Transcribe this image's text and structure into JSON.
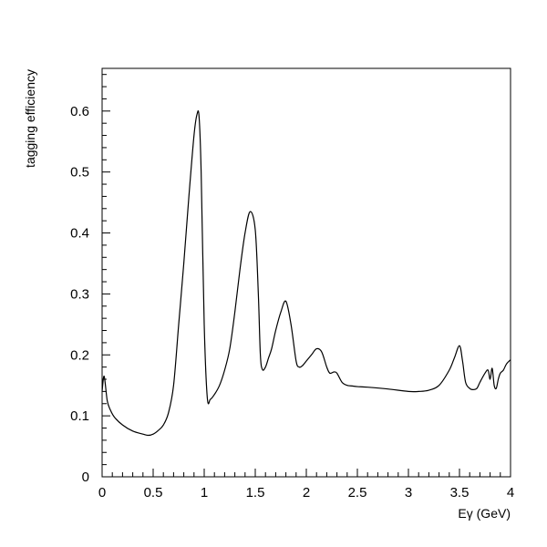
{
  "chart_data": {
    "type": "line",
    "title": "",
    "xlabel": "Eγ (GeV)",
    "ylabel": "tagging efficiency",
    "xlim": [
      0,
      4
    ],
    "ylim": [
      0,
      0.67
    ],
    "x_ticks": [
      0,
      0.5,
      1,
      1.5,
      2,
      2.5,
      3,
      3.5,
      4
    ],
    "x_tick_labels": [
      "0",
      "0.5",
      "1",
      "1.5",
      "2",
      "2.5",
      "3",
      "3.5",
      "4"
    ],
    "y_ticks": [
      0,
      0.1,
      0.2,
      0.3,
      0.4,
      0.5,
      0.6
    ],
    "y_tick_labels": [
      "0",
      "0.1",
      "0.2",
      "0.3",
      "0.4",
      "0.5",
      "0.6"
    ],
    "grid": false,
    "series": [
      {
        "x": [
          0.0,
          0.02,
          0.05,
          0.08,
          0.12,
          0.2,
          0.3,
          0.4,
          0.45,
          0.5,
          0.55,
          0.6,
          0.65,
          0.7,
          0.75,
          0.8,
          0.85,
          0.9,
          0.93,
          0.95,
          0.97,
          1.0,
          1.03,
          1.06,
          1.1,
          1.15,
          1.2,
          1.25,
          1.3,
          1.35,
          1.4,
          1.45,
          1.5,
          1.53,
          1.55,
          1.57,
          1.6,
          1.63,
          1.66,
          1.7,
          1.75,
          1.8,
          1.85,
          1.9,
          1.93,
          1.96,
          2.0,
          2.05,
          2.1,
          2.15,
          2.2,
          2.23,
          2.27,
          2.3,
          2.35,
          2.4,
          2.45,
          2.5,
          2.6,
          2.8,
          3.0,
          3.1,
          3.2,
          3.3,
          3.4,
          3.45,
          3.5,
          3.53,
          3.56,
          3.6,
          3.63,
          3.67,
          3.7,
          3.75,
          3.78,
          3.8,
          3.82,
          3.84,
          3.86,
          3.88,
          3.9,
          3.93,
          3.96,
          4.0
        ],
        "y": [
          0.14,
          0.165,
          0.125,
          0.11,
          0.098,
          0.085,
          0.075,
          0.07,
          0.068,
          0.07,
          0.076,
          0.085,
          0.105,
          0.15,
          0.25,
          0.35,
          0.46,
          0.56,
          0.595,
          0.59,
          0.5,
          0.25,
          0.13,
          0.127,
          0.135,
          0.15,
          0.175,
          0.21,
          0.27,
          0.34,
          0.4,
          0.435,
          0.405,
          0.3,
          0.2,
          0.176,
          0.18,
          0.195,
          0.21,
          0.24,
          0.27,
          0.288,
          0.25,
          0.19,
          0.18,
          0.182,
          0.19,
          0.2,
          0.21,
          0.205,
          0.18,
          0.17,
          0.172,
          0.17,
          0.155,
          0.15,
          0.149,
          0.148,
          0.147,
          0.144,
          0.14,
          0.14,
          0.142,
          0.15,
          0.175,
          0.195,
          0.215,
          0.19,
          0.155,
          0.145,
          0.143,
          0.145,
          0.155,
          0.17,
          0.175,
          0.16,
          0.178,
          0.15,
          0.145,
          0.16,
          0.17,
          0.175,
          0.185,
          0.192
        ]
      }
    ]
  }
}
